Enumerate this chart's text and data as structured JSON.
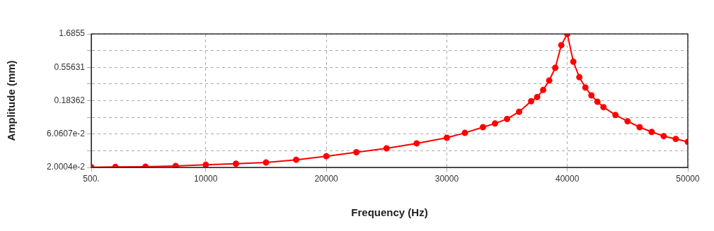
{
  "chart_data": {
    "type": "line",
    "xlabel": "Frequency (Hz)",
    "ylabel": "Amplitude (mm)",
    "x": [
      500,
      2500,
      5000,
      7500,
      10000,
      12500,
      15000,
      17500,
      20000,
      22500,
      25000,
      27500,
      30000,
      31500,
      33000,
      34000,
      35000,
      36000,
      37000,
      37500,
      38000,
      38500,
      39000,
      39500,
      40000,
      40500,
      41000,
      41500,
      42000,
      42500,
      43000,
      44000,
      45000,
      46000,
      47000,
      48000,
      49000,
      50000
    ],
    "series": [
      {
        "color": "#ff0000",
        "values": [
          0.0201,
          0.0203,
          0.0205,
          0.021,
          0.0218,
          0.0226,
          0.0236,
          0.0258,
          0.029,
          0.0331,
          0.0377,
          0.0445,
          0.0536,
          0.063,
          0.0762,
          0.086,
          0.1,
          0.127,
          0.18,
          0.207,
          0.262,
          0.358,
          0.547,
          1.16,
          1.68,
          0.67,
          0.4,
          0.284,
          0.219,
          0.177,
          0.148,
          0.114,
          0.0926,
          0.0762,
          0.0651,
          0.0566,
          0.0515,
          0.0467
        ]
      }
    ],
    "xlim": [
      500,
      50000
    ],
    "xticks": [
      {
        "value": 500,
        "label": "500."
      },
      10000,
      20000,
      30000,
      40000,
      50000
    ],
    "ylim": [
      0.020004,
      1.6855
    ],
    "log": "y",
    "yticks": [
      {
        "value": 0.020004,
        "label": "2.0004e-2"
      },
      {
        "value": 0.03482,
        "label": null
      },
      {
        "value": 0.060607,
        "label": "6.0607e-2"
      },
      {
        "value": 0.1055,
        "label": null
      },
      0.18362,
      {
        "value": 0.3197,
        "label": null
      },
      0.55631,
      {
        "value": 0.9683,
        "label": null
      },
      1.6855
    ],
    "grid": true,
    "marker": "circle",
    "line_style": "solid",
    "legend": false
  }
}
